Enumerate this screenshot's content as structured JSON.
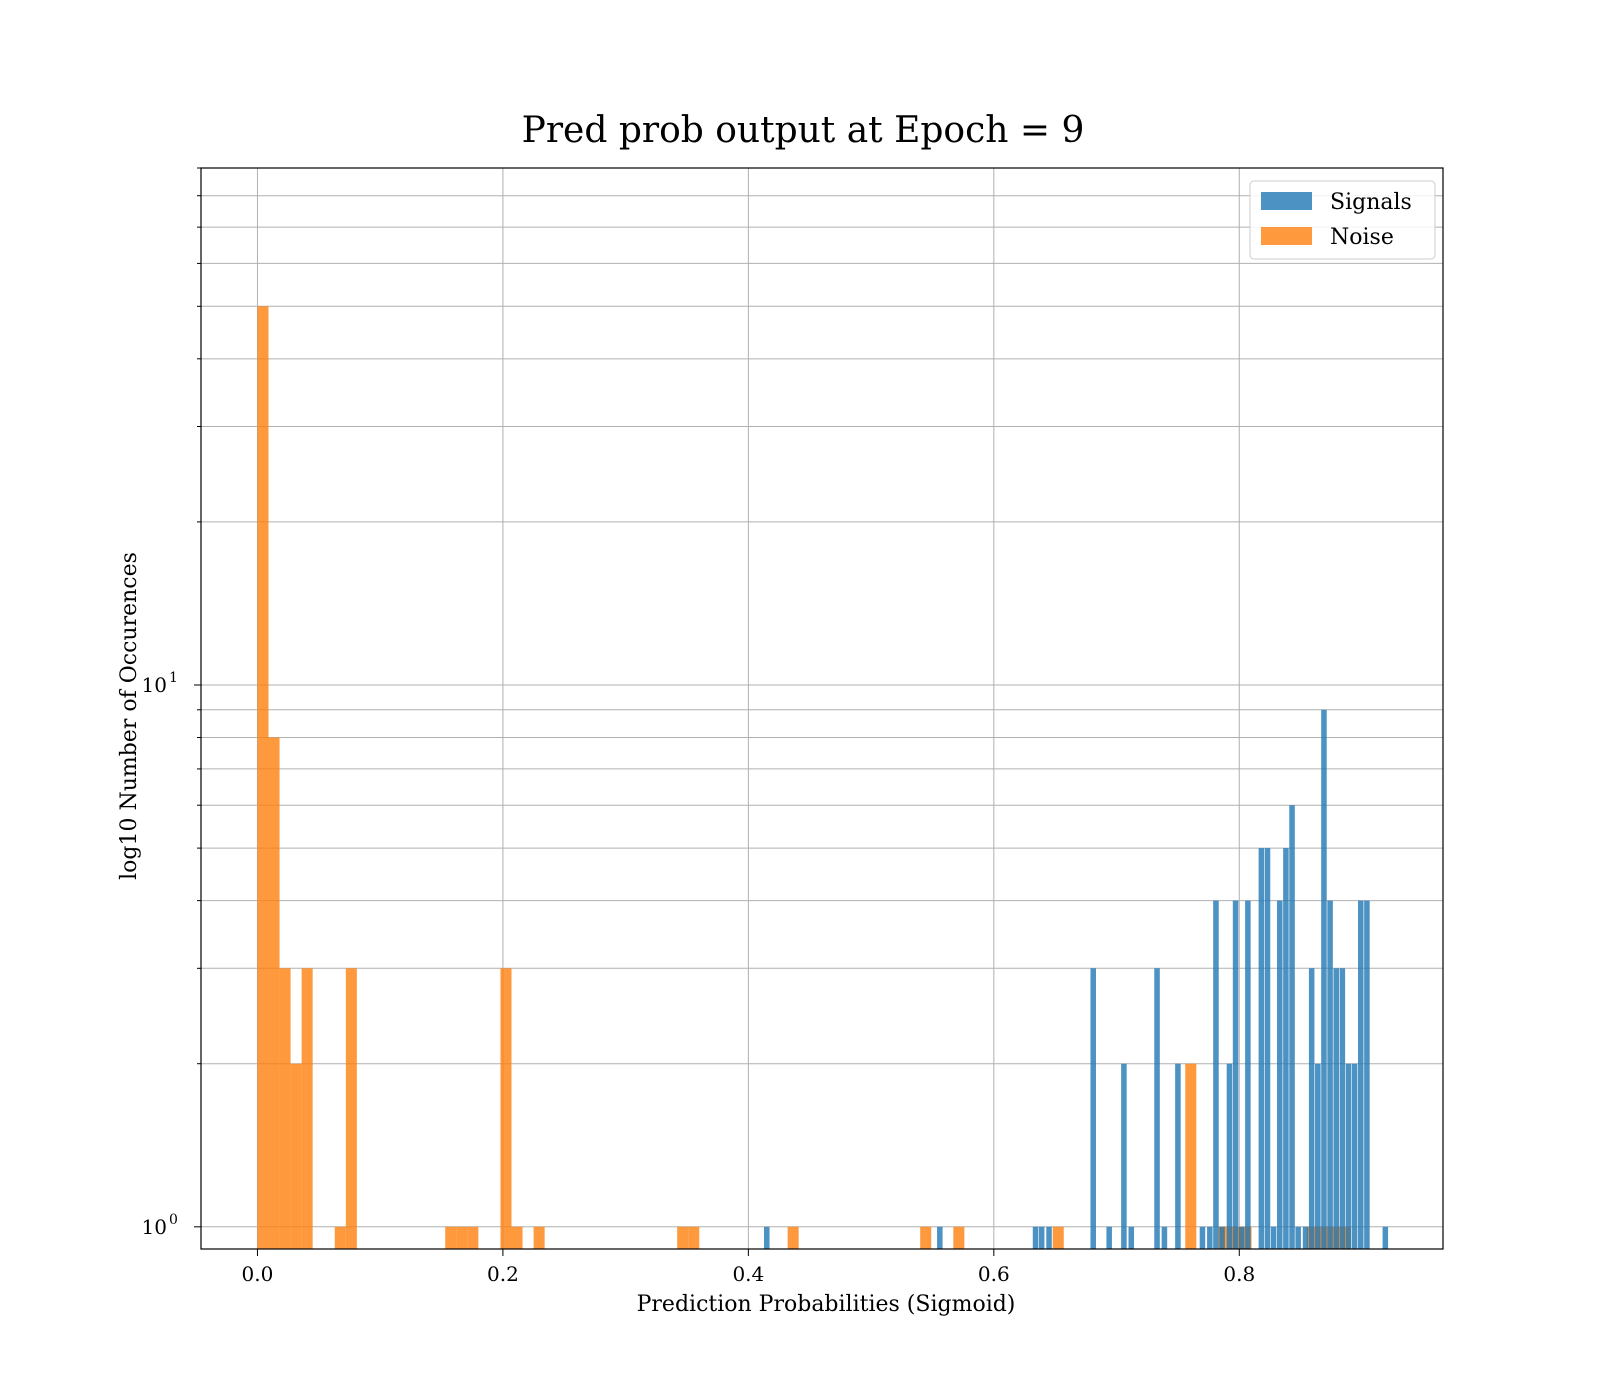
{
  "chart_data": {
    "type": "bar",
    "title": "Pred prob output at Epoch = 9",
    "xlabel": "Prediction Probabilities (Sigmoid)",
    "ylabel": "log10 Number of Occurences",
    "xlim": [
      -0.046,
      0.966
    ],
    "ylim": [
      0.91,
      90
    ],
    "yscale": "log",
    "xticks": [
      0.0,
      0.2,
      0.4,
      0.6,
      0.8
    ],
    "xtick_labels": [
      "0.0",
      "0.2",
      "0.4",
      "0.6",
      "0.8"
    ],
    "yticks": [
      1,
      10
    ],
    "ytick_labels": [
      {
        "base": "10",
        "exp": "0"
      },
      {
        "base": "10",
        "exp": "1"
      }
    ],
    "grid": true,
    "legend_position": "top-right",
    "series": [
      {
        "name": "Signals",
        "color": "#1f77b4",
        "bin_width": 0.0045,
        "bins": [
          [
            0.415,
            1
          ],
          [
            0.556,
            1
          ],
          [
            0.634,
            1
          ],
          [
            0.639,
            1
          ],
          [
            0.645,
            1
          ],
          [
            0.681,
            3
          ],
          [
            0.694,
            1
          ],
          [
            0.706,
            2
          ],
          [
            0.712,
            1
          ],
          [
            0.733,
            3
          ],
          [
            0.739,
            1
          ],
          [
            0.75,
            2
          ],
          [
            0.77,
            1
          ],
          [
            0.776,
            1
          ],
          [
            0.781,
            4
          ],
          [
            0.786,
            1
          ],
          [
            0.792,
            2
          ],
          [
            0.797,
            4
          ],
          [
            0.802,
            1
          ],
          [
            0.807,
            4
          ],
          [
            0.818,
            5
          ],
          [
            0.823,
            5
          ],
          [
            0.828,
            1
          ],
          [
            0.833,
            4
          ],
          [
            0.838,
            5
          ],
          [
            0.843,
            6
          ],
          [
            0.848,
            1
          ],
          [
            0.854,
            1
          ],
          [
            0.859,
            3
          ],
          [
            0.864,
            2
          ],
          [
            0.869,
            9
          ],
          [
            0.874,
            4
          ],
          [
            0.879,
            3
          ],
          [
            0.884,
            3
          ],
          [
            0.889,
            2
          ],
          [
            0.894,
            2
          ],
          [
            0.899,
            4
          ],
          [
            0.904,
            4
          ],
          [
            0.919,
            1
          ]
        ]
      },
      {
        "name": "Noise",
        "color": "#ff7f0e",
        "bin_width": 0.009,
        "bins": [
          [
            0.0045,
            50
          ],
          [
            0.0135,
            8
          ],
          [
            0.0225,
            3
          ],
          [
            0.0315,
            2
          ],
          [
            0.0405,
            3
          ],
          [
            0.0675,
            1
          ],
          [
            0.0765,
            3
          ],
          [
            0.1575,
            1
          ],
          [
            0.1665,
            1
          ],
          [
            0.1755,
            1
          ],
          [
            0.2025,
            3
          ],
          [
            0.2115,
            1
          ],
          [
            0.2295,
            1
          ],
          [
            0.3465,
            1
          ],
          [
            0.3555,
            1
          ],
          [
            0.4365,
            1
          ],
          [
            0.5445,
            1
          ],
          [
            0.5715,
            1
          ],
          [
            0.6525,
            1
          ],
          [
            0.7605,
            2
          ],
          [
            0.7875,
            1
          ],
          [
            0.7965,
            1
          ],
          [
            0.8055,
            1
          ],
          [
            0.8595,
            1
          ],
          [
            0.8685,
            1
          ],
          [
            0.8775,
            1
          ],
          [
            0.8865,
            1
          ]
        ]
      }
    ]
  }
}
